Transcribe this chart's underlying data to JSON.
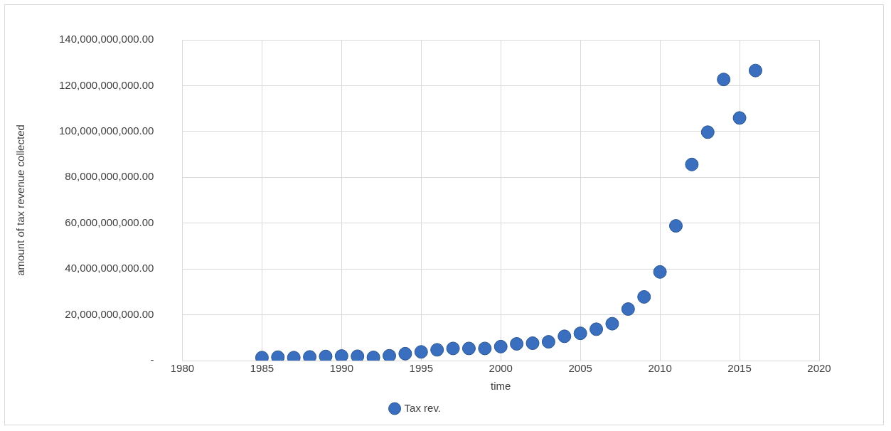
{
  "chart_data": {
    "type": "scatter",
    "xlabel": "time",
    "ylabel": "amount of tax revenue collected",
    "x": [
      1985,
      1986,
      1987,
      1988,
      1989,
      1990,
      1991,
      1992,
      1993,
      1994,
      1995,
      1996,
      1997,
      1998,
      1999,
      2000,
      2001,
      2002,
      2003,
      2004,
      2005,
      2006,
      2007,
      2008,
      2009,
      2010,
      2011,
      2012,
      2013,
      2014,
      2015,
      2016
    ],
    "series": [
      {
        "name": "Tax rev.",
        "color": "#3a6fbf",
        "values": [
          1300000000,
          1500000000,
          1300000000,
          1600000000,
          1800000000,
          2000000000,
          1900000000,
          1400000000,
          2100000000,
          3000000000,
          3800000000,
          4700000000,
          5300000000,
          5300000000,
          5300000000,
          6100000000,
          7300000000,
          7600000000,
          8200000000,
          10600000000,
          11900000000,
          13700000000,
          16100000000,
          22500000000,
          27800000000,
          38700000000,
          58800000000,
          85600000000,
          99700000000,
          122700000000,
          105900000000,
          126600000000
        ]
      }
    ],
    "xlim": [
      1980,
      2020
    ],
    "xticks": [
      1980,
      1985,
      1990,
      1995,
      2000,
      2005,
      2010,
      2015,
      2020
    ],
    "ylim": [
      0,
      140000000000
    ],
    "yticks": [
      {
        "value": 0,
        "label": "-"
      },
      {
        "value": 20000000000,
        "label": "20,000,000,000.00"
      },
      {
        "value": 40000000000,
        "label": "40,000,000,000.00"
      },
      {
        "value": 60000000000,
        "label": "60,000,000,000.00"
      },
      {
        "value": 80000000000,
        "label": "80,000,000,000.00"
      },
      {
        "value": 100000000000,
        "label": "100,000,000,000.00"
      },
      {
        "value": 120000000000,
        "label": "120,000,000,000.00"
      },
      {
        "value": 140000000000,
        "label": "140,000,000,000.00"
      }
    ],
    "grid": true,
    "legend": "bottom",
    "marker": "circle"
  }
}
